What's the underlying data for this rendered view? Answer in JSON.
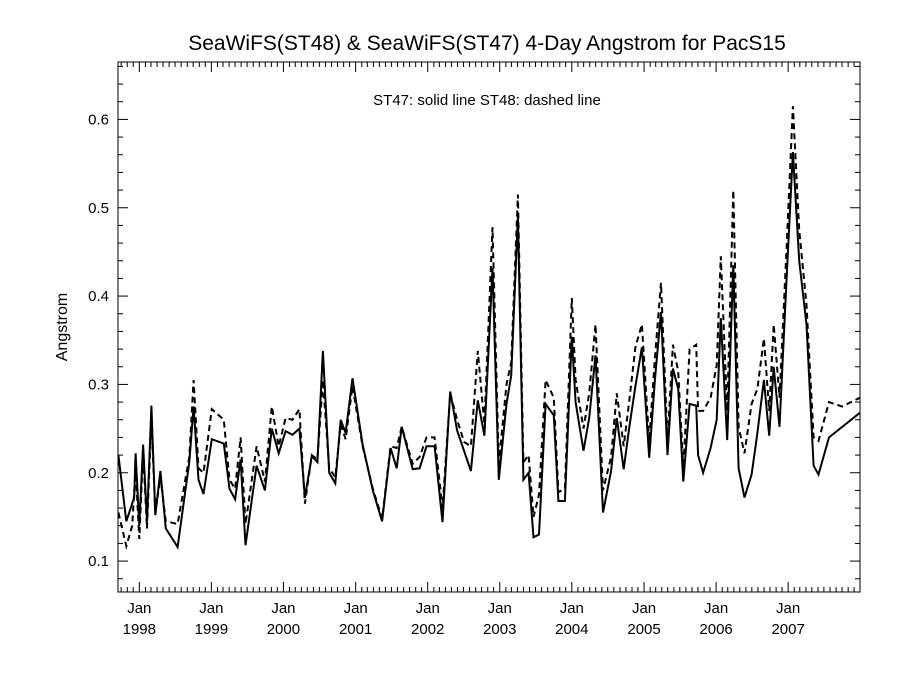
{
  "chart_data": {
    "type": "line",
    "title": "SeaWiFS(ST48) & SeaWiFS(ST47) 4-Day Angstrom for PacS15",
    "annotation": "ST47: solid line   ST48: dashed line",
    "xlabel": "",
    "ylabel": "Angstrom",
    "xlim": [
      "1997-09-15",
      "2007-12-31"
    ],
    "ylim": [
      0.065,
      0.665
    ],
    "grid": false,
    "y_ticks": [
      0.1,
      0.2,
      0.3,
      0.4,
      0.5,
      0.6
    ],
    "y_tick_labels": [
      "0.1",
      "0.2",
      "0.3",
      "0.4",
      "0.5",
      "0.6"
    ],
    "x_ticks": [
      {
        "date": "1998-01-01",
        "month": "Jan",
        "year": "1998"
      },
      {
        "date": "1999-01-01",
        "month": "Jan",
        "year": "1999"
      },
      {
        "date": "2000-01-01",
        "month": "Jan",
        "year": "2000"
      },
      {
        "date": "2001-01-01",
        "month": "Jan",
        "year": "2001"
      },
      {
        "date": "2002-01-01",
        "month": "Jan",
        "year": "2002"
      },
      {
        "date": "2003-01-01",
        "month": "Jan",
        "year": "2003"
      },
      {
        "date": "2004-01-01",
        "month": "Jan",
        "year": "2004"
      },
      {
        "date": "2005-01-01",
        "month": "Jan",
        "year": "2005"
      },
      {
        "date": "2006-01-01",
        "month": "Jan",
        "year": "2006"
      },
      {
        "date": "2007-01-01",
        "month": "Jan",
        "year": "2007"
      }
    ],
    "series": [
      {
        "name": "ST47",
        "style": "solid",
        "color": "#000000",
        "points": [
          [
            "1997-09-17",
            0.22
          ],
          [
            "1997-10-27",
            0.145
          ],
          [
            "1997-12-06",
            0.172
          ],
          [
            "1997-12-13",
            0.222
          ],
          [
            "1998-01-01",
            0.14
          ],
          [
            "1998-01-20",
            0.232
          ],
          [
            "1998-02-09",
            0.145
          ],
          [
            "1998-03-03",
            0.276
          ],
          [
            "1998-03-23",
            0.152
          ],
          [
            "1998-04-18",
            0.202
          ],
          [
            "1998-05-15",
            0.137
          ],
          [
            "1998-07-14",
            0.116
          ],
          [
            "1998-09-11",
            0.212
          ],
          [
            "1998-10-03",
            0.275
          ],
          [
            "1998-10-28",
            0.192
          ],
          [
            "1998-11-22",
            0.176
          ],
          [
            "1999-01-03",
            0.238
          ],
          [
            "1999-03-05",
            0.233
          ],
          [
            "1999-04-03",
            0.182
          ],
          [
            "1999-05-01",
            0.17
          ],
          [
            "1999-05-29",
            0.215
          ],
          [
            "1999-06-23",
            0.118
          ],
          [
            "1999-08-18",
            0.208
          ],
          [
            "1999-09-29",
            0.18
          ],
          [
            "1999-11-03",
            0.25
          ],
          [
            "1999-12-08",
            0.222
          ],
          [
            "2000-01-12",
            0.247
          ],
          [
            "2000-02-16",
            0.243
          ],
          [
            "2000-03-22",
            0.25
          ],
          [
            "2000-04-19",
            0.172
          ],
          [
            "2000-05-24",
            0.219
          ],
          [
            "2000-06-21",
            0.212
          ],
          [
            "2000-07-19",
            0.338
          ],
          [
            "2000-08-20",
            0.2
          ],
          [
            "2000-09-20",
            0.188
          ],
          [
            "2000-10-17",
            0.26
          ],
          [
            "2000-11-11",
            0.245
          ],
          [
            "2000-12-16",
            0.307
          ],
          [
            "2001-02-05",
            0.232
          ],
          [
            "2001-03-29",
            0.18
          ],
          [
            "2001-05-15",
            0.145
          ],
          [
            "2001-06-27",
            0.228
          ],
          [
            "2001-07-28",
            0.205
          ],
          [
            "2001-08-22",
            0.252
          ],
          [
            "2001-10-17",
            0.204
          ],
          [
            "2001-11-21",
            0.205
          ],
          [
            "2001-12-26",
            0.23
          ],
          [
            "2002-02-05",
            0.23
          ],
          [
            "2002-03-17",
            0.144
          ],
          [
            "2002-04-25",
            0.292
          ],
          [
            "2002-05-30",
            0.248
          ],
          [
            "2002-07-04",
            0.225
          ],
          [
            "2002-08-08",
            0.202
          ],
          [
            "2002-09-12",
            0.282
          ],
          [
            "2002-10-15",
            0.242
          ],
          [
            "2002-11-25",
            0.432
          ],
          [
            "2002-12-27",
            0.192
          ],
          [
            "2003-02-04",
            0.278
          ],
          [
            "2003-02-28",
            0.31
          ],
          [
            "2003-04-03",
            0.49
          ],
          [
            "2003-05-01",
            0.192
          ],
          [
            "2003-05-27",
            0.2
          ],
          [
            "2003-06-21",
            0.127
          ],
          [
            "2003-07-19",
            0.13
          ],
          [
            "2003-08-21",
            0.278
          ],
          [
            "2003-10-02",
            0.265
          ],
          [
            "2003-10-25",
            0.168
          ],
          [
            "2003-11-27",
            0.168
          ],
          [
            "2004-01-01",
            0.354
          ],
          [
            "2004-01-20",
            0.28
          ],
          [
            "2004-02-29",
            0.225
          ],
          [
            "2004-03-29",
            0.262
          ],
          [
            "2004-04-30",
            0.333
          ],
          [
            "2004-06-07",
            0.155
          ],
          [
            "2004-07-18",
            0.202
          ],
          [
            "2004-08-16",
            0.262
          ],
          [
            "2004-09-20",
            0.204
          ],
          [
            "2004-10-17",
            0.25
          ],
          [
            "2004-11-18",
            0.298
          ],
          [
            "2004-12-21",
            0.342
          ],
          [
            "2005-01-27",
            0.217
          ],
          [
            "2005-02-25",
            0.305
          ],
          [
            "2005-03-28",
            0.382
          ],
          [
            "2005-04-30",
            0.22
          ],
          [
            "2005-05-27",
            0.318
          ],
          [
            "2005-06-23",
            0.295
          ],
          [
            "2005-07-19",
            0.19
          ],
          [
            "2005-08-20",
            0.278
          ],
          [
            "2005-09-22",
            0.276
          ],
          [
            "2005-10-02",
            0.22
          ],
          [
            "2005-10-27",
            0.2
          ],
          [
            "2005-12-04",
            0.228
          ],
          [
            "2006-01-04",
            0.26
          ],
          [
            "2006-01-25",
            0.375
          ],
          [
            "2006-02-26",
            0.237
          ],
          [
            "2006-03-29",
            0.435
          ],
          [
            "2006-04-25",
            0.205
          ],
          [
            "2006-05-25",
            0.172
          ],
          [
            "2006-06-30",
            0.198
          ],
          [
            "2006-07-29",
            0.245
          ],
          [
            "2006-08-31",
            0.305
          ],
          [
            "2006-09-27",
            0.242
          ],
          [
            "2006-10-20",
            0.32
          ],
          [
            "2006-11-18",
            0.252
          ],
          [
            "2006-12-24",
            0.42
          ],
          [
            "2007-01-25",
            0.563
          ],
          [
            "2007-02-26",
            0.44
          ],
          [
            "2007-04-04",
            0.368
          ],
          [
            "2007-05-10",
            0.208
          ],
          [
            "2007-06-04",
            0.198
          ],
          [
            "2007-07-27",
            0.24
          ],
          [
            "2007-12-31",
            0.268
          ]
        ]
      },
      {
        "name": "ST48",
        "style": "dashed",
        "color": "#000000",
        "points": [
          [
            "1997-09-17",
            0.155
          ],
          [
            "1997-10-27",
            0.117
          ],
          [
            "1997-11-26",
            0.14
          ],
          [
            "1997-12-13",
            0.205
          ],
          [
            "1998-01-01",
            0.125
          ],
          [
            "1998-01-20",
            0.225
          ],
          [
            "1998-02-09",
            0.137
          ],
          [
            "1998-03-03",
            0.262
          ],
          [
            "1998-03-23",
            0.155
          ],
          [
            "1998-04-18",
            0.195
          ],
          [
            "1998-05-15",
            0.145
          ],
          [
            "1998-07-14",
            0.142
          ],
          [
            "1998-09-11",
            0.218
          ],
          [
            "1998-10-03",
            0.305
          ],
          [
            "1998-10-28",
            0.205
          ],
          [
            "1998-11-22",
            0.2
          ],
          [
            "1999-01-03",
            0.272
          ],
          [
            "1999-03-05",
            0.26
          ],
          [
            "1999-04-03",
            0.192
          ],
          [
            "1999-05-01",
            0.182
          ],
          [
            "1999-05-29",
            0.24
          ],
          [
            "1999-06-23",
            0.142
          ],
          [
            "1999-08-18",
            0.23
          ],
          [
            "1999-09-29",
            0.19
          ],
          [
            "1999-11-03",
            0.275
          ],
          [
            "1999-12-08",
            0.23
          ],
          [
            "2000-01-12",
            0.262
          ],
          [
            "2000-02-16",
            0.26
          ],
          [
            "2000-03-22",
            0.272
          ],
          [
            "2000-04-19",
            0.165
          ],
          [
            "2000-05-24",
            0.22
          ],
          [
            "2000-06-21",
            0.215
          ],
          [
            "2000-07-19",
            0.305
          ],
          [
            "2000-08-20",
            0.205
          ],
          [
            "2000-09-20",
            0.195
          ],
          [
            "2000-10-17",
            0.255
          ],
          [
            "2000-11-11",
            0.238
          ],
          [
            "2000-12-16",
            0.298
          ],
          [
            "2001-02-05",
            0.23
          ],
          [
            "2001-03-29",
            0.182
          ],
          [
            "2001-05-15",
            0.148
          ],
          [
            "2001-06-27",
            0.23
          ],
          [
            "2001-07-28",
            0.228
          ],
          [
            "2001-08-22",
            0.252
          ],
          [
            "2001-10-17",
            0.21
          ],
          [
            "2001-11-21",
            0.218
          ],
          [
            "2001-12-26",
            0.24
          ],
          [
            "2002-02-05",
            0.24
          ],
          [
            "2002-03-17",
            0.16
          ],
          [
            "2002-04-25",
            0.29
          ],
          [
            "2002-05-30",
            0.26
          ],
          [
            "2002-07-04",
            0.235
          ],
          [
            "2002-08-08",
            0.23
          ],
          [
            "2002-09-12",
            0.338
          ],
          [
            "2002-10-15",
            0.255
          ],
          [
            "2002-11-25",
            0.478
          ],
          [
            "2002-12-27",
            0.21
          ],
          [
            "2003-02-04",
            0.3
          ],
          [
            "2003-02-28",
            0.325
          ],
          [
            "2003-04-03",
            0.515
          ],
          [
            "2003-05-01",
            0.212
          ],
          [
            "2003-05-27",
            0.22
          ],
          [
            "2003-06-21",
            0.15
          ],
          [
            "2003-07-19",
            0.175
          ],
          [
            "2003-08-21",
            0.305
          ],
          [
            "2003-10-02",
            0.285
          ],
          [
            "2003-10-25",
            0.178
          ],
          [
            "2003-11-27",
            0.182
          ],
          [
            "2004-01-01",
            0.398
          ],
          [
            "2004-01-20",
            0.305
          ],
          [
            "2004-02-29",
            0.25
          ],
          [
            "2004-03-29",
            0.29
          ],
          [
            "2004-04-30",
            0.368
          ],
          [
            "2004-06-07",
            0.18
          ],
          [
            "2004-07-18",
            0.218
          ],
          [
            "2004-08-16",
            0.29
          ],
          [
            "2004-09-20",
            0.23
          ],
          [
            "2004-10-17",
            0.28
          ],
          [
            "2004-11-18",
            0.342
          ],
          [
            "2004-12-21",
            0.368
          ],
          [
            "2005-01-27",
            0.235
          ],
          [
            "2005-02-25",
            0.33
          ],
          [
            "2005-03-28",
            0.415
          ],
          [
            "2005-04-30",
            0.235
          ],
          [
            "2005-05-27",
            0.345
          ],
          [
            "2005-06-23",
            0.315
          ],
          [
            "2005-07-19",
            0.205
          ],
          [
            "2005-08-20",
            0.34
          ],
          [
            "2005-09-22",
            0.345
          ],
          [
            "2005-10-02",
            0.27
          ],
          [
            "2005-10-27",
            0.27
          ],
          [
            "2005-12-04",
            0.285
          ],
          [
            "2006-01-04",
            0.322
          ],
          [
            "2006-01-25",
            0.445
          ],
          [
            "2006-02-26",
            0.27
          ],
          [
            "2006-03-29",
            0.52
          ],
          [
            "2006-04-25",
            0.252
          ],
          [
            "2006-05-25",
            0.222
          ],
          [
            "2006-06-30",
            0.278
          ],
          [
            "2006-07-29",
            0.295
          ],
          [
            "2006-08-31",
            0.352
          ],
          [
            "2006-09-27",
            0.27
          ],
          [
            "2006-10-20",
            0.368
          ],
          [
            "2006-11-18",
            0.285
          ],
          [
            "2006-12-24",
            0.455
          ],
          [
            "2007-01-25",
            0.615
          ],
          [
            "2007-02-26",
            0.475
          ],
          [
            "2007-04-04",
            0.39
          ],
          [
            "2007-05-10",
            0.24
          ],
          [
            "2007-06-04",
            0.236
          ],
          [
            "2007-07-27",
            0.28
          ],
          [
            "2007-10-01",
            0.275
          ],
          [
            "2007-12-31",
            0.285
          ]
        ]
      }
    ]
  }
}
